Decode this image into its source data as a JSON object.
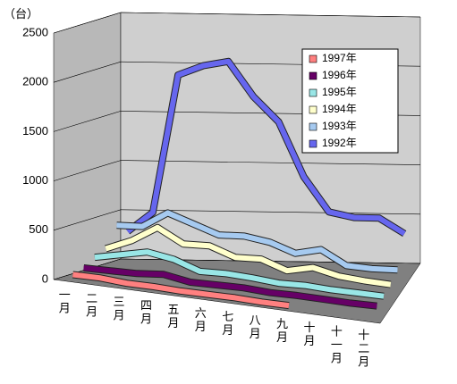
{
  "chart_data": {
    "type": "line3d",
    "unit_label": "（台）",
    "categories": [
      "一月",
      "二月",
      "三月",
      "四月",
      "五月",
      "六月",
      "七月",
      "八月",
      "九月",
      "十月",
      "十一月",
      "十二月"
    ],
    "series": [
      {
        "name": "1997年",
        "color": "#ff8080",
        "values": [
          50,
          50,
          30,
          30,
          20,
          20,
          20,
          10,
          10,
          null,
          null,
          null
        ]
      },
      {
        "name": "1996年",
        "color": "#660066",
        "values": [
          80,
          80,
          80,
          100,
          50,
          50,
          50,
          30,
          30,
          20,
          10,
          10
        ]
      },
      {
        "name": "1995年",
        "color": "#99e6e6",
        "values": [
          150,
          200,
          250,
          200,
          100,
          100,
          80,
          50,
          50,
          30,
          20,
          10
        ]
      },
      {
        "name": "1994年",
        "color": "#ffffcc",
        "values": [
          200,
          300,
          450,
          300,
          300,
          200,
          200,
          100,
          150,
          80,
          50,
          30
        ]
      },
      {
        "name": "1993年",
        "color": "#a6caf0",
        "values": [
          400,
          400,
          550,
          450,
          350,
          350,
          300,
          200,
          250,
          100,
          80,
          80
        ]
      },
      {
        "name": "1992年",
        "color": "#6666ee",
        "values": [
          300,
          500,
          1900,
          2000,
          2050,
          1700,
          1450,
          900,
          550,
          500,
          500,
          350
        ]
      }
    ],
    "ylim": [
      0,
      2500
    ],
    "yticks": [
      0,
      500,
      1000,
      1500,
      2000,
      2500
    ],
    "grid": true,
    "legend": "upper right"
  }
}
